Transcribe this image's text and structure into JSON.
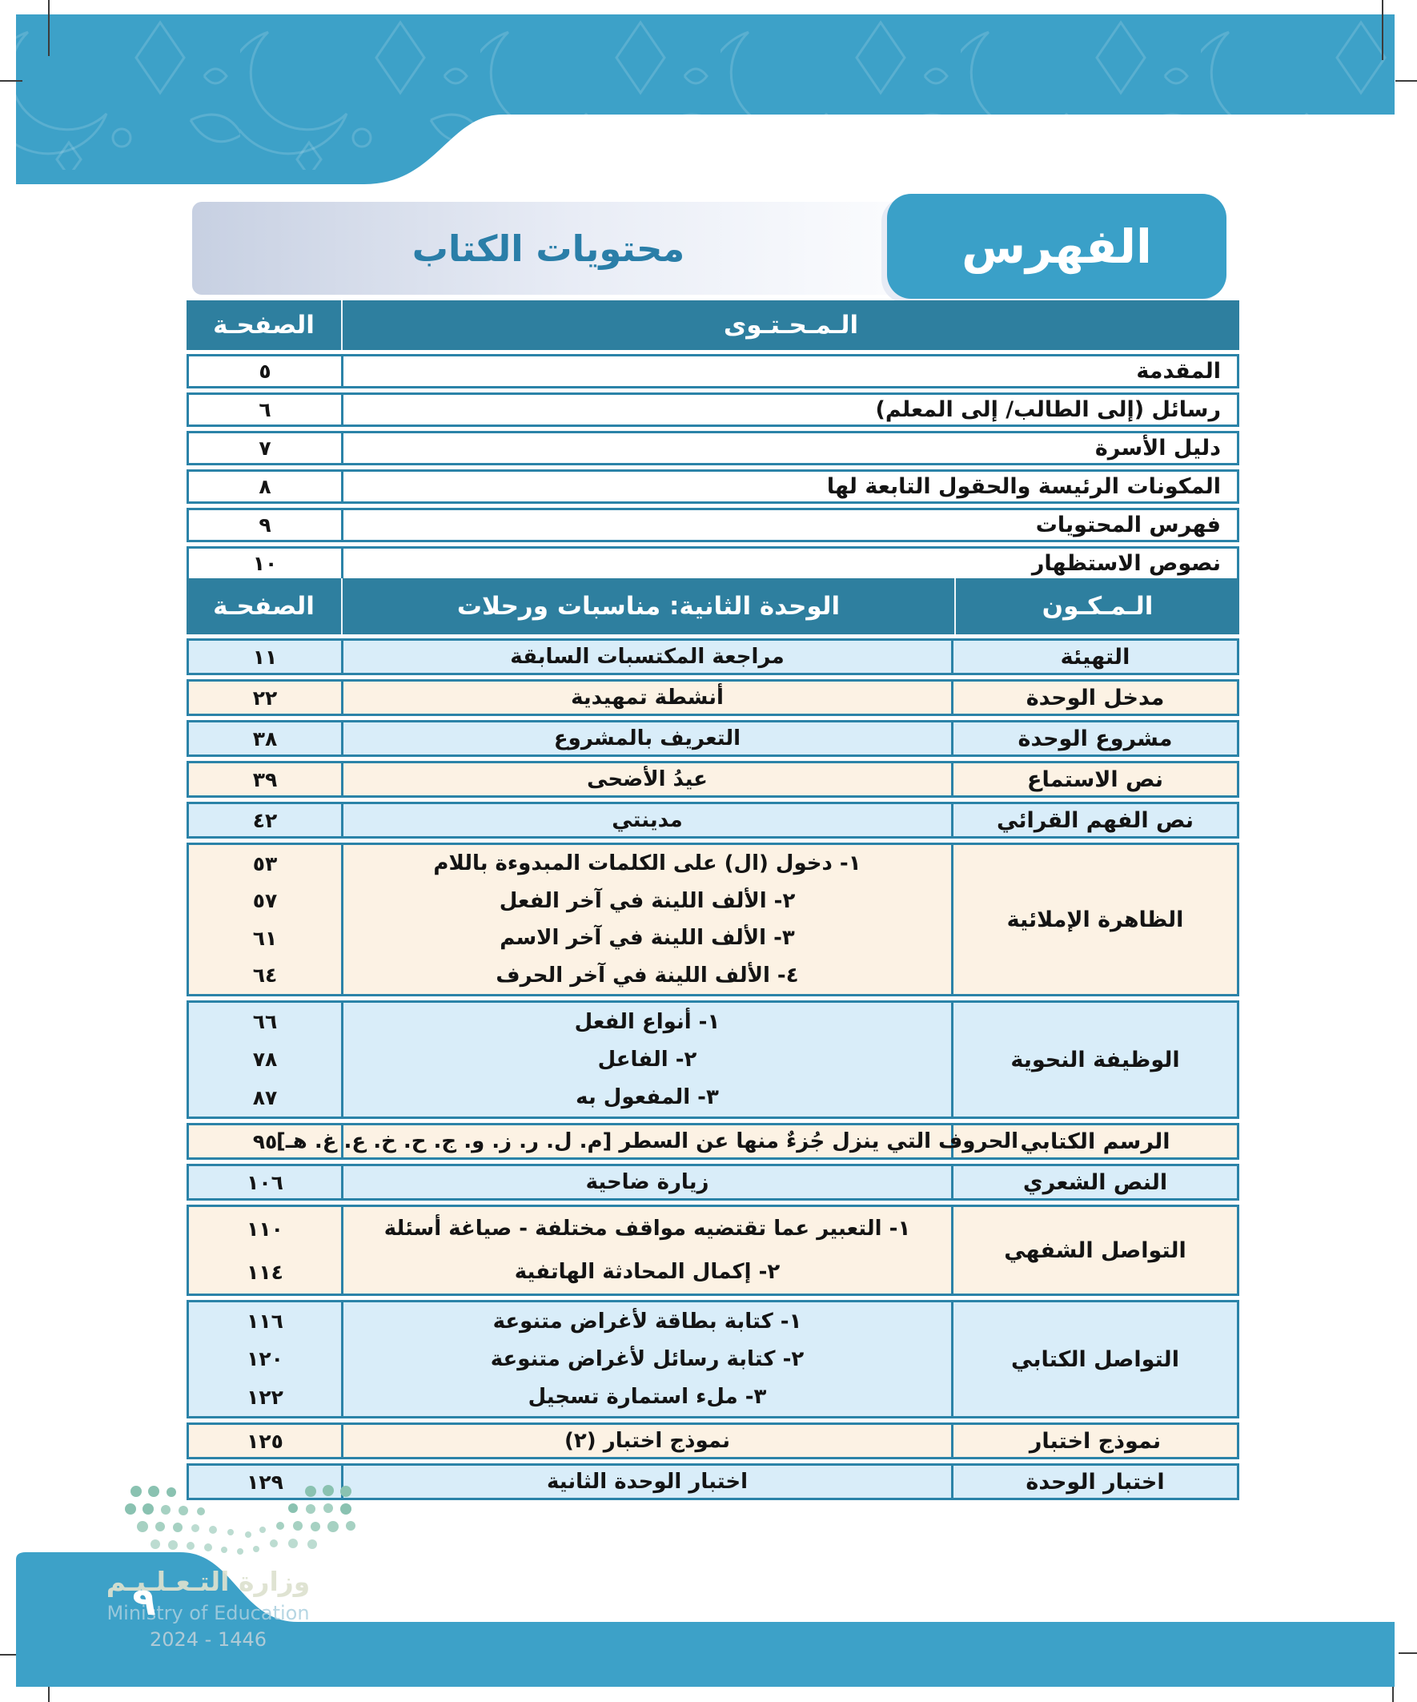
{
  "header": {
    "index_title": "الفهرس",
    "subtitle": "محتويات الكتاب"
  },
  "front_table": {
    "headers": {
      "content": "الـمـحـتـوى",
      "page": "الصفحـة"
    },
    "rows": [
      {
        "content": "المقدمة",
        "page": "٥"
      },
      {
        "content": "رسائل (إلى الطالب/ إلى المعلم)",
        "page": "٦"
      },
      {
        "content": "دليل الأسرة",
        "page": "٧"
      },
      {
        "content": "المكونات الرئيسة والحقول التابعة لها",
        "page": "٨"
      },
      {
        "content": "فهرس المحتويات",
        "page": "٩"
      },
      {
        "content": "نصوص الاستظهار",
        "page": "١٠"
      }
    ]
  },
  "unit_table": {
    "headers": {
      "component": "الـمـكـون",
      "unit": "الوحدة الثانية: مناسبات ورحلات",
      "page": "الصفحـة"
    },
    "rows": [
      {
        "component": "التهيئة",
        "tone": "blue",
        "entries": [
          {
            "text": "مراجعة المكتسبات السابقة",
            "page": "١١"
          }
        ]
      },
      {
        "component": "مدخل الوحدة",
        "tone": "cream",
        "entries": [
          {
            "text": "أنشطة تمهيدية",
            "page": "٢٢"
          }
        ]
      },
      {
        "component": "مشروع الوحدة",
        "tone": "blue",
        "entries": [
          {
            "text": "التعريف بالمشروع",
            "page": "٣٨"
          }
        ]
      },
      {
        "component": "نص الاستماع",
        "tone": "cream",
        "entries": [
          {
            "text": "عيدُ الأضحى",
            "page": "٣٩"
          }
        ]
      },
      {
        "component": "نص الفهم القرائي",
        "tone": "blue",
        "entries": [
          {
            "text": "مدينتي",
            "page": "٤٢"
          }
        ]
      },
      {
        "component": "الظاهرة الإملائية",
        "tone": "cream",
        "entries": [
          {
            "text": "١- دخول (ال) على الكلمات المبدوءة باللام",
            "page": "٥٣"
          },
          {
            "text": "٢- الألف اللينة في آخر الفعل",
            "page": "٥٧"
          },
          {
            "text": "٣- الألف اللينة في آخر الاسم",
            "page": "٦١"
          },
          {
            "text": "٤- الألف اللينة في آخر الحرف",
            "page": "٦٤"
          }
        ]
      },
      {
        "component": "الوظيفة النحوية",
        "tone": "blue",
        "entries": [
          {
            "text": "١- أنواع الفعل",
            "page": "٦٦"
          },
          {
            "text": "٢- الفاعل",
            "page": "٧٨"
          },
          {
            "text": "٣- المفعول به",
            "page": "٨٧"
          }
        ]
      },
      {
        "component": "الرسم الكتابي",
        "tone": "cream",
        "entries": [
          {
            "text": "الحروف التي ينزل جُزءٌ منها عن السطر [م. ل. ر. ز. و. ج. ح. خ. ع. غ. هـ]",
            "page": "٩٥"
          }
        ]
      },
      {
        "component": "النص الشعري",
        "tone": "blue",
        "entries": [
          {
            "text": "زيارة ضاحية",
            "page": "١٠٦"
          }
        ]
      },
      {
        "component": "التواصل الشفهي",
        "tone": "cream",
        "entries": [
          {
            "text": "١- التعبير عما تقتضيه مواقف مختلفة - صياغة أسئلة",
            "page": "١١٠"
          },
          {
            "text": "٢- إكمال المحادثة الهاتفية",
            "page": "١١٤"
          }
        ]
      },
      {
        "component": "التواصل الكتابي",
        "tone": "blue",
        "entries": [
          {
            "text": "١- كتابة بطاقة لأغراض متنوعة",
            "page": "١١٦"
          },
          {
            "text": "٢- كتابة رسائل لأغراض متنوعة",
            "page": "١٢٠"
          },
          {
            "text": "٣- ملء استمارة تسجيل",
            "page": "١٢٢"
          }
        ]
      },
      {
        "component": "نموذج اختبار",
        "tone": "cream",
        "entries": [
          {
            "text": "نموذج اختبار (٢)",
            "page": "١٢٥"
          }
        ]
      },
      {
        "component": "اختبار الوحدة",
        "tone": "blue",
        "entries": [
          {
            "text": "اختبار الوحدة الثانية",
            "page": "١٢٩"
          }
        ]
      }
    ]
  },
  "footer": {
    "page_number": "٩",
    "ministry_ar": "وزارة التـعـلـيـم",
    "ministry_en": "Ministry of Education",
    "edition": "2024 - 1446"
  },
  "colors": {
    "band_blue": "#3da1c8",
    "header_teal": "#2e7f9f",
    "row_blue": "#d9edf9",
    "row_cream": "#fcf2e4",
    "border_teal": "#2b83a8"
  }
}
